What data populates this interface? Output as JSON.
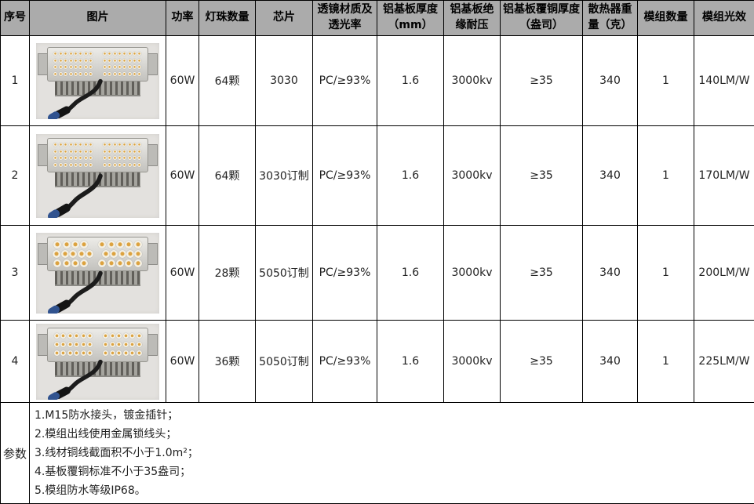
{
  "table": {
    "columns": [
      "序号",
      "图片",
      "功率",
      "灯珠数量",
      "芯片",
      "透镜材质及透光率",
      "铝基板厚度（mm）",
      "铝基板绝缘耐压",
      "铝基板覆铜厚度（盎司）",
      "散热器重量（克）",
      "模组数量",
      "模组光效"
    ],
    "rows": [
      {
        "no": "1",
        "photo": {
          "name": "led-module-60w-64-3030",
          "led_rows": [
            16,
            16,
            16,
            16
          ],
          "led_size": 5
        },
        "power": "60W",
        "led_count": "64颗",
        "chip": "3030",
        "lens": "PC/≥93%",
        "board_thickness": "1.6",
        "insulation": "3000kv",
        "copper": "≥35",
        "heatsink_weight": "340",
        "module_count": "1",
        "efficacy": "140LM/W"
      },
      {
        "no": "2",
        "photo": {
          "name": "led-module-60w-64-3030-custom",
          "led_rows": [
            16,
            16,
            16,
            16
          ],
          "led_size": 5
        },
        "power": "60W",
        "led_count": "64颗",
        "chip": "3030订制",
        "lens": "PC/≥93%",
        "board_thickness": "1.6",
        "insulation": "3000kv",
        "copper": "≥35",
        "heatsink_weight": "340",
        "module_count": "1",
        "efficacy": "170LM/W"
      },
      {
        "no": "3",
        "photo": {
          "name": "led-module-60w-28-5050-custom",
          "led_rows": [
            9,
            10,
            9
          ],
          "led_size": 10
        },
        "power": "60W",
        "led_count": "28颗",
        "chip": "5050订制",
        "lens": "PC/≥93%",
        "board_thickness": "1.6",
        "insulation": "3000kv",
        "copper": "≥35",
        "heatsink_weight": "340",
        "module_count": "1",
        "efficacy": "200LM/W"
      },
      {
        "no": "4",
        "photo": {
          "name": "led-module-60w-36-5050-custom",
          "led_rows": [
            12,
            12,
            12
          ],
          "led_size": 7
        },
        "power": "60W",
        "led_count": "36颗",
        "chip": "5050订制",
        "lens": "PC/≥93%",
        "board_thickness": "1.6",
        "insulation": "3000kv",
        "copper": "≥35",
        "heatsink_weight": "340",
        "module_count": "1",
        "efficacy": "225LM/W"
      }
    ]
  },
  "params": {
    "label": "参数",
    "notes": [
      "1.M15防水接头，镀金插针；",
      "2.模组出线使用金属锁线头；",
      "3.线材铜线截面积不小于1.0m²；",
      "4.基板覆铜标准不小于35盎司；",
      "5.模组防水等级IP68。"
    ]
  },
  "colors": {
    "header_bg": "#ababab",
    "border": "#000000",
    "photo_bg": "#e3e1de",
    "cable": "#1c1c1c",
    "connector_tip": "#31538f",
    "led_amber": "#dca23f"
  }
}
